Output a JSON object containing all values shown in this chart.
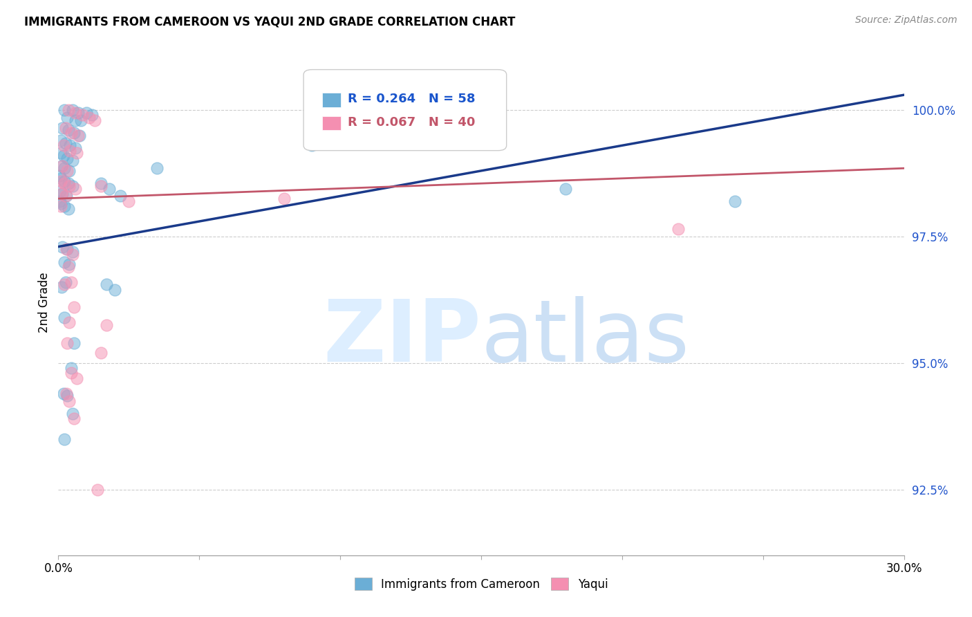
{
  "title": "IMMIGRANTS FROM CAMEROON VS YAQUI 2ND GRADE CORRELATION CHART",
  "source": "Source: ZipAtlas.com",
  "ylabel": "2nd Grade",
  "yticks": [
    92.5,
    95.0,
    97.5,
    100.0
  ],
  "ytick_labels": [
    "92.5%",
    "95.0%",
    "97.5%",
    "100.0%"
  ],
  "xmin": 0.0,
  "xmax": 30.0,
  "ymin": 91.2,
  "ymax": 101.2,
  "legend_blue_label": "Immigrants from Cameroon",
  "legend_pink_label": "Yaqui",
  "r_blue": "R = 0.264",
  "n_blue": "N = 58",
  "r_pink": "R = 0.067",
  "n_pink": "N = 40",
  "blue_color": "#6baed6",
  "pink_color": "#f48fb1",
  "line_blue_color": "#1a3a8a",
  "line_pink_color": "#c2566a",
  "blue_points": [
    [
      0.2,
      100.0
    ],
    [
      0.5,
      100.0
    ],
    [
      0.7,
      99.95
    ],
    [
      1.0,
      99.95
    ],
    [
      1.2,
      99.9
    ],
    [
      0.3,
      99.85
    ],
    [
      0.6,
      99.8
    ],
    [
      0.8,
      99.8
    ],
    [
      0.15,
      99.65
    ],
    [
      0.35,
      99.6
    ],
    [
      0.55,
      99.55
    ],
    [
      0.75,
      99.5
    ],
    [
      0.1,
      99.4
    ],
    [
      0.25,
      99.35
    ],
    [
      0.4,
      99.3
    ],
    [
      0.6,
      99.25
    ],
    [
      0.08,
      99.15
    ],
    [
      0.18,
      99.1
    ],
    [
      0.3,
      99.05
    ],
    [
      0.5,
      99.0
    ],
    [
      0.12,
      98.9
    ],
    [
      0.22,
      98.85
    ],
    [
      0.38,
      98.8
    ],
    [
      0.05,
      98.7
    ],
    [
      0.1,
      98.65
    ],
    [
      0.2,
      98.6
    ],
    [
      0.35,
      98.55
    ],
    [
      0.5,
      98.5
    ],
    [
      0.06,
      98.4
    ],
    [
      0.15,
      98.35
    ],
    [
      0.28,
      98.3
    ],
    [
      0.04,
      98.2
    ],
    [
      0.1,
      98.15
    ],
    [
      0.2,
      98.1
    ],
    [
      0.35,
      98.05
    ],
    [
      1.5,
      98.55
    ],
    [
      1.8,
      98.45
    ],
    [
      2.2,
      98.3
    ],
    [
      3.5,
      98.85
    ],
    [
      9.0,
      99.3
    ],
    [
      18.0,
      98.45
    ],
    [
      24.0,
      98.2
    ],
    [
      0.15,
      97.3
    ],
    [
      0.3,
      97.25
    ],
    [
      0.5,
      97.2
    ],
    [
      0.2,
      97.0
    ],
    [
      0.38,
      96.95
    ],
    [
      0.25,
      96.6
    ],
    [
      0.12,
      96.5
    ],
    [
      1.7,
      96.55
    ],
    [
      2.0,
      96.45
    ],
    [
      0.2,
      95.9
    ],
    [
      0.55,
      95.4
    ],
    [
      0.45,
      94.9
    ],
    [
      0.18,
      94.4
    ],
    [
      0.32,
      94.35
    ],
    [
      0.5,
      94.0
    ],
    [
      0.22,
      93.5
    ]
  ],
  "pink_points": [
    [
      0.35,
      100.0
    ],
    [
      0.6,
      99.95
    ],
    [
      0.85,
      99.9
    ],
    [
      1.1,
      99.85
    ],
    [
      1.3,
      99.8
    ],
    [
      0.25,
      99.65
    ],
    [
      0.45,
      99.55
    ],
    [
      0.7,
      99.5
    ],
    [
      0.18,
      99.3
    ],
    [
      0.4,
      99.2
    ],
    [
      0.65,
      99.15
    ],
    [
      0.15,
      98.9
    ],
    [
      0.32,
      98.8
    ],
    [
      0.1,
      98.6
    ],
    [
      0.22,
      98.55
    ],
    [
      0.38,
      98.5
    ],
    [
      0.6,
      98.45
    ],
    [
      0.12,
      98.35
    ],
    [
      0.26,
      98.3
    ],
    [
      0.08,
      98.1
    ],
    [
      1.5,
      98.5
    ],
    [
      2.5,
      98.2
    ],
    [
      8.0,
      98.25
    ],
    [
      22.0,
      97.65
    ],
    [
      0.28,
      97.25
    ],
    [
      0.5,
      97.15
    ],
    [
      0.35,
      96.9
    ],
    [
      0.45,
      96.6
    ],
    [
      0.22,
      96.55
    ],
    [
      0.55,
      96.1
    ],
    [
      0.38,
      95.8
    ],
    [
      1.7,
      95.75
    ],
    [
      0.32,
      95.4
    ],
    [
      1.5,
      95.2
    ],
    [
      0.45,
      94.8
    ],
    [
      0.65,
      94.7
    ],
    [
      0.28,
      94.4
    ],
    [
      0.38,
      94.25
    ],
    [
      0.55,
      93.9
    ],
    [
      1.4,
      92.5
    ]
  ]
}
